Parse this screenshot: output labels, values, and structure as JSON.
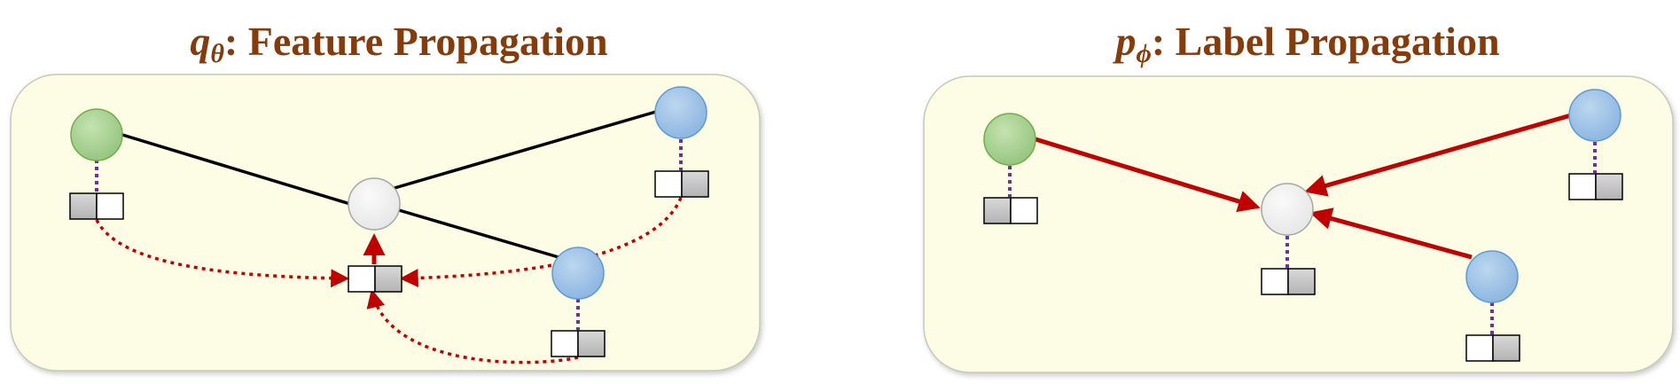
{
  "left_panel": {
    "title_symbol": "q",
    "title_subscript": "θ",
    "title_text": ": Feature Propagation"
  },
  "right_panel": {
    "title_symbol": "p",
    "title_subscript": "ϕ",
    "title_text": ": Label Propagation"
  },
  "colors": {
    "panel_fill": "#fdfde6",
    "green_node": "#a9d18e",
    "blue_node": "#9dc3e6",
    "gray_node": "#f2f2f2",
    "arrow_red": "#c00000",
    "dotted_purple": "#7030a0",
    "feature_gray": "#c8c8c8"
  }
}
